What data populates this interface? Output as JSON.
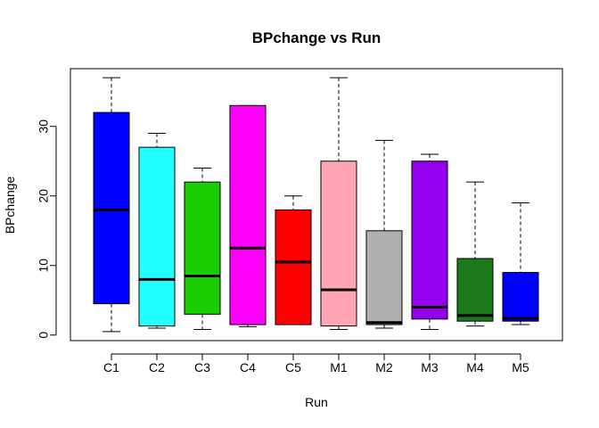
{
  "chart_data": {
    "type": "boxplot",
    "title": "BPchange vs Run",
    "xlabel": "Run",
    "ylabel": "BPchange",
    "ylim": [
      -0.8,
      38.3
    ],
    "yticks": [
      0,
      10,
      20,
      30
    ],
    "grid": false,
    "categories": [
      "C1",
      "C2",
      "C3",
      "C4",
      "C5",
      "M1",
      "M2",
      "M3",
      "M4",
      "M5"
    ],
    "colors": [
      "#0000ff",
      "#22ffff",
      "#19cd00",
      "#ff00ff",
      "#ff0000",
      "#ffa5b4",
      "#b0b0b0",
      "#9400ee",
      "#1c7a1c",
      "#0000ff"
    ],
    "boxes": [
      {
        "min": 0.5,
        "q1": 4.5,
        "median": 18.0,
        "q3": 32.0,
        "max": 37.0
      },
      {
        "min": 1.0,
        "q1": 1.3,
        "median": 8.0,
        "q3": 27.0,
        "max": 29.0
      },
      {
        "min": 0.8,
        "q1": 3.0,
        "median": 8.5,
        "q3": 22.0,
        "max": 24.0
      },
      {
        "min": 1.2,
        "q1": 1.5,
        "median": 12.5,
        "q3": 33.0,
        "max": 33.0
      },
      {
        "min": 1.5,
        "q1": 1.5,
        "median": 10.5,
        "q3": 18.0,
        "max": 20.0
      },
      {
        "min": 0.8,
        "q1": 1.3,
        "median": 6.5,
        "q3": 25.0,
        "max": 37.0
      },
      {
        "min": 1.0,
        "q1": 1.5,
        "median": 1.8,
        "q3": 15.0,
        "max": 28.0
      },
      {
        "min": 0.8,
        "q1": 2.3,
        "median": 4.0,
        "q3": 25.0,
        "max": 26.0
      },
      {
        "min": 1.3,
        "q1": 2.0,
        "median": 2.8,
        "q3": 11.0,
        "max": 22.0
      },
      {
        "min": 1.5,
        "q1": 2.0,
        "median": 2.4,
        "q3": 9.0,
        "max": 19.0
      }
    ]
  }
}
